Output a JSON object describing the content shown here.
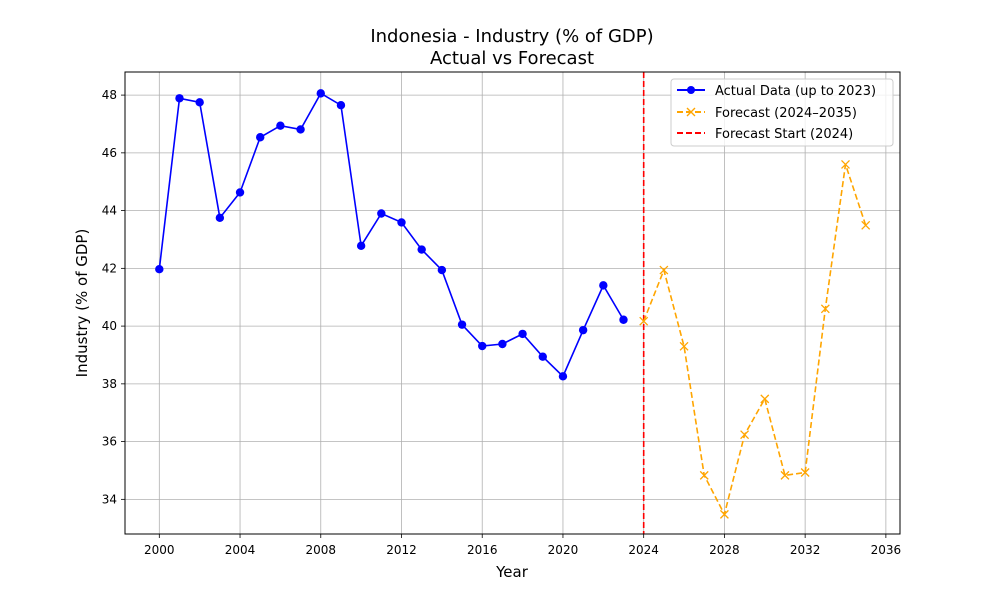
{
  "chart_data": {
    "type": "line",
    "title": "Indonesia - Industry (% of GDP)",
    "subtitle": "Actual vs Forecast",
    "xlabel": "Year",
    "ylabel": "Industry (% of GDP)",
    "xlim": [
      1998.3,
      2036.7
    ],
    "ylim": [
      32.8,
      48.8
    ],
    "xticks": [
      2000,
      2004,
      2008,
      2012,
      2016,
      2020,
      2024,
      2028,
      2032,
      2036
    ],
    "yticks": [
      34,
      36,
      38,
      40,
      42,
      44,
      46,
      48
    ],
    "grid": true,
    "legend_position": "top-right",
    "series": [
      {
        "name": "Actual Data (up to 2023)",
        "color": "#0000ff",
        "line_style": "solid",
        "marker": "circle",
        "x": [
          2000,
          2001,
          2002,
          2003,
          2004,
          2005,
          2006,
          2007,
          2008,
          2009,
          2010,
          2011,
          2012,
          2013,
          2014,
          2015,
          2016,
          2017,
          2018,
          2019,
          2020,
          2021,
          2022,
          2023
        ],
        "values": [
          41.97,
          47.89,
          47.75,
          43.75,
          44.63,
          46.54,
          46.94,
          46.81,
          48.06,
          47.65,
          42.78,
          43.9,
          43.59,
          42.65,
          41.94,
          40.05,
          39.31,
          39.38,
          39.73,
          38.94,
          38.26,
          39.86,
          41.41,
          40.22
        ]
      },
      {
        "name": "Forecast (2024–2035)",
        "color": "#ffa500",
        "line_style": "dashed",
        "marker": "x",
        "x": [
          2024,
          2025,
          2026,
          2027,
          2028,
          2029,
          2030,
          2031,
          2032,
          2033,
          2034,
          2035
        ],
        "values": [
          40.17,
          41.94,
          39.3,
          34.83,
          33.48,
          36.24,
          37.48,
          34.83,
          34.93,
          40.6,
          45.6,
          43.49
        ]
      }
    ],
    "vline": {
      "name": "Forecast Start (2024)",
      "x": 2024,
      "color": "#ff0000",
      "line_style": "dashed"
    }
  }
}
